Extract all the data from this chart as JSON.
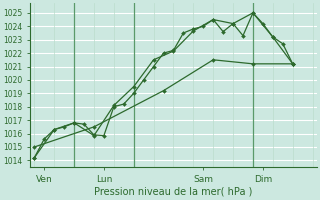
{
  "bg_color": "#cce8e0",
  "grid_color_h": "#ffffff",
  "grid_color_v": "#bbddcc",
  "line_color": "#2d6a2d",
  "marker_color": "#2d6a2d",
  "ylabel_ticks": [
    1014,
    1015,
    1016,
    1017,
    1018,
    1019,
    1020,
    1021,
    1022,
    1023,
    1024,
    1025
  ],
  "ylim": [
    1013.5,
    1025.7
  ],
  "xlabel": "Pression niveau de la mer( hPa )",
  "xtick_labels": [
    "Ven",
    "Lun",
    "Sam",
    "Dim"
  ],
  "xtick_positions": [
    0.5,
    3.5,
    8.5,
    11.5
  ],
  "vline_positions": [
    0,
    2.0,
    5.0,
    11.0,
    13.5
  ],
  "xlim": [
    -0.2,
    14.2
  ],
  "line1": {
    "x": [
      0.0,
      0.5,
      1.0,
      1.5,
      2.0,
      2.5,
      3.0,
      3.5,
      4.0,
      4.5,
      5.0,
      5.5,
      6.0,
      6.5,
      7.0,
      7.5,
      8.0,
      8.5,
      9.0,
      9.5,
      10.0,
      10.5,
      11.0,
      11.5,
      12.0,
      12.5,
      13.0
    ],
    "y": [
      1014.2,
      1015.6,
      1016.3,
      1016.5,
      1016.8,
      1016.7,
      1015.9,
      1015.85,
      1018.0,
      1018.2,
      1019.0,
      1020.0,
      1021.0,
      1022.0,
      1022.2,
      1023.5,
      1023.8,
      1024.0,
      1024.5,
      1023.6,
      1024.2,
      1023.3,
      1025.0,
      1024.2,
      1023.2,
      1022.7,
      1021.2
    ]
  },
  "line2": {
    "x": [
      0.0,
      1.0,
      2.0,
      3.0,
      4.0,
      5.0,
      6.0,
      7.0,
      8.0,
      9.0,
      10.0,
      11.0,
      12.0,
      13.0
    ],
    "y": [
      1014.2,
      1016.3,
      1016.8,
      1015.85,
      1018.1,
      1019.5,
      1021.5,
      1022.15,
      1023.65,
      1024.5,
      1024.2,
      1025.0,
      1023.2,
      1021.2
    ]
  },
  "line3": {
    "x": [
      0.0,
      3.0,
      6.5,
      9.0,
      11.0,
      13.0
    ],
    "y": [
      1015.0,
      1016.5,
      1019.2,
      1021.5,
      1021.2,
      1021.2
    ]
  }
}
